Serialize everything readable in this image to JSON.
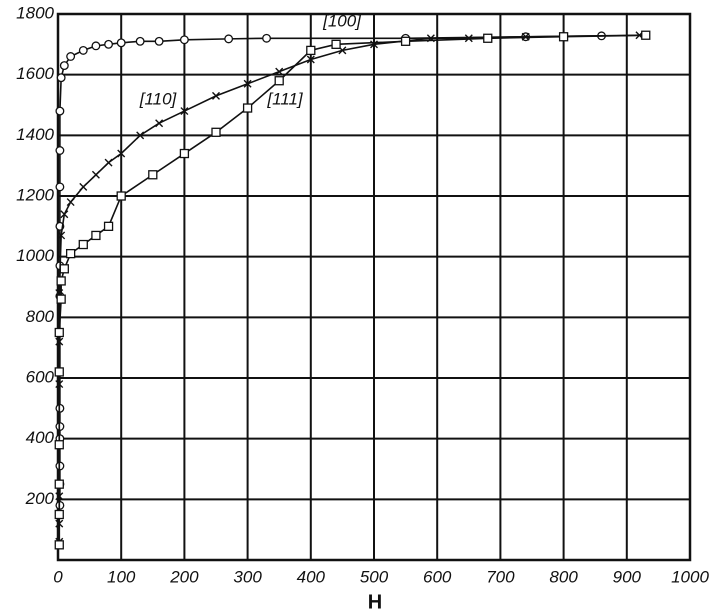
{
  "chart_data": {
    "type": "line",
    "x_label": "H",
    "xlim": [
      0,
      1000
    ],
    "ylim": [
      0,
      1800
    ],
    "xticks": [
      0,
      100,
      200,
      300,
      400,
      500,
      600,
      700,
      800,
      900,
      1000
    ],
    "yticks": [
      200,
      400,
      600,
      800,
      1000,
      1200,
      1400,
      1600,
      1800
    ],
    "grid": true,
    "series": [
      {
        "name": "[100]",
        "color": "#111111",
        "marker": "circle",
        "x": [
          3,
          3,
          3,
          3,
          3,
          3,
          3,
          3,
          3,
          3,
          3,
          3,
          5,
          10,
          20,
          40,
          60,
          80,
          100,
          130,
          160,
          200,
          270,
          330,
          550,
          740,
          860
        ],
        "values": [
          180,
          250,
          310,
          400,
          440,
          500,
          870,
          970,
          1100,
          1230,
          1350,
          1480,
          1590,
          1630,
          1660,
          1680,
          1695,
          1700,
          1705,
          1710,
          1710,
          1715,
          1718,
          1720,
          1720,
          1725,
          1728
        ]
      },
      {
        "name": "[110]",
        "color": "#111111",
        "marker": "cross",
        "x": [
          2,
          2,
          2,
          2,
          2,
          2,
          2,
          5,
          10,
          20,
          40,
          60,
          80,
          100,
          130,
          160,
          200,
          250,
          300,
          350,
          400,
          450,
          500,
          590,
          650,
          740,
          920
        ],
        "values": [
          60,
          120,
          210,
          380,
          580,
          720,
          880,
          1070,
          1140,
          1180,
          1230,
          1270,
          1310,
          1340,
          1400,
          1440,
          1480,
          1530,
          1570,
          1610,
          1650,
          1680,
          1700,
          1720,
          1720,
          1725,
          1730
        ]
      },
      {
        "name": "[111]",
        "color": "#111111",
        "marker": "square",
        "x": [
          2,
          2,
          2,
          2,
          2,
          2,
          5,
          5,
          10,
          20,
          40,
          60,
          80,
          100,
          150,
          200,
          250,
          300,
          350,
          400,
          440,
          550,
          680,
          800,
          930
        ],
        "values": [
          50,
          150,
          250,
          380,
          620,
          750,
          860,
          920,
          960,
          1010,
          1040,
          1070,
          1100,
          1200,
          1270,
          1340,
          1410,
          1490,
          1580,
          1680,
          1700,
          1710,
          1720,
          1725,
          1730
        ]
      }
    ]
  }
}
